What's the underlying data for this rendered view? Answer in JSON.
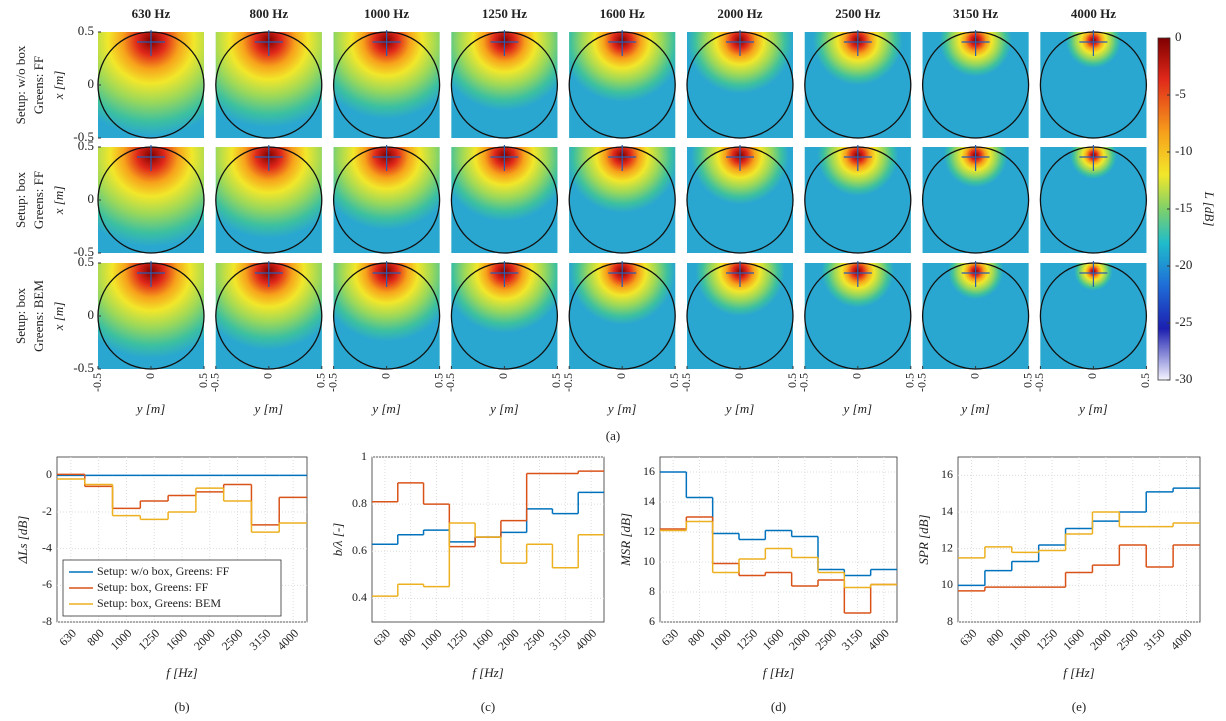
{
  "figure_a": {
    "columns": [
      "630 Hz",
      "800 Hz",
      "1000 Hz",
      "1250 Hz",
      "1600 Hz",
      "2000 Hz",
      "2500 Hz",
      "3150 Hz",
      "4000 Hz"
    ],
    "rows": [
      {
        "setup": "Setup: w/o box",
        "greens": "Greens: FF"
      },
      {
        "setup": "Setup: box",
        "greens": "Greens: FF"
      },
      {
        "setup": "Setup: box",
        "greens": "Greens: BEM"
      }
    ],
    "x_label": "x [m]",
    "y_label": "y [m]",
    "xlim": [
      -0.5,
      0.5
    ],
    "xticks": [
      -0.5,
      0,
      0.5
    ],
    "ylim": [
      -0.5,
      0.5
    ],
    "yticks": [
      0.5,
      0,
      -0.5
    ],
    "colorbar": {
      "label": "L [dB]",
      "lim": [
        -30,
        0
      ],
      "ticks": [
        0,
        -5,
        -10,
        -15,
        -20,
        -25,
        -30
      ]
    },
    "caption": "(a)"
  },
  "chart_data": [
    {
      "type": "step",
      "caption": "(b)",
      "x_label": "f [Hz]",
      "y_label": "ΔLs [dB]",
      "categories": [
        "630",
        "800",
        "1000",
        "1250",
        "1600",
        "2000",
        "2500",
        "3150",
        "4000"
      ],
      "ylim": [
        -8,
        1
      ],
      "yticks": [
        0,
        -2,
        -4,
        -6,
        -8
      ],
      "grid": true,
      "legend": "lower left",
      "series": [
        {
          "name": "Setup: w/o box, Greens: FF",
          "color": "#0072bd",
          "values": [
            0,
            0,
            0,
            0,
            0,
            0,
            0,
            0,
            0
          ]
        },
        {
          "name": "Setup: box, Greens: FF",
          "color": "#d95319",
          "values": [
            0.05,
            -0.6,
            -1.8,
            -1.4,
            -1.1,
            -0.9,
            -0.5,
            -2.7,
            -1.2
          ]
        },
        {
          "name": "Setup: box, Greens: BEM",
          "color": "#edb120",
          "values": [
            -0.2,
            -0.5,
            -2.2,
            -2.4,
            -2.0,
            -0.7,
            -1.4,
            -3.1,
            -2.6
          ]
        }
      ]
    },
    {
      "type": "step",
      "caption": "(c)",
      "x_label": "f [Hz]",
      "y_label": "b/λ [-]",
      "categories": [
        "630",
        "800",
        "1000",
        "1250",
        "1600",
        "2000",
        "2500",
        "3150",
        "4000"
      ],
      "ylim": [
        0.3,
        1
      ],
      "yticks": [
        0.4,
        0.6,
        0.8,
        1
      ],
      "grid": true,
      "series": [
        {
          "color": "#0072bd",
          "values": [
            0.63,
            0.67,
            0.69,
            0.64,
            0.66,
            0.68,
            0.78,
            0.76,
            0.85
          ]
        },
        {
          "color": "#d95319",
          "values": [
            0.81,
            0.89,
            0.8,
            0.62,
            0.66,
            0.73,
            0.93,
            0.93,
            0.94
          ]
        },
        {
          "color": "#edb120",
          "values": [
            0.41,
            0.46,
            0.45,
            0.72,
            0.66,
            0.55,
            0.63,
            0.53,
            0.67
          ]
        }
      ]
    },
    {
      "type": "step",
      "caption": "(d)",
      "x_label": "f [Hz]",
      "y_label": "MSR [dB]",
      "categories": [
        "630",
        "800",
        "1000",
        "1250",
        "1600",
        "2000",
        "2500",
        "3150",
        "4000"
      ],
      "ylim": [
        6,
        17
      ],
      "yticks": [
        6,
        8,
        10,
        12,
        14,
        16
      ],
      "grid": true,
      "series": [
        {
          "color": "#0072bd",
          "values": [
            16,
            14.3,
            11.9,
            11.5,
            12.1,
            11.7,
            9.5,
            9.1,
            9.5
          ]
        },
        {
          "color": "#d95319",
          "values": [
            12.2,
            13.0,
            9.9,
            9.1,
            9.3,
            8.4,
            8.8,
            6.6,
            8.5
          ]
        },
        {
          "color": "#edb120",
          "values": [
            12.1,
            12.7,
            9.3,
            10.2,
            10.9,
            10.3,
            9.3,
            8.3,
            8.5
          ]
        }
      ]
    },
    {
      "type": "step",
      "caption": "(e)",
      "x_label": "f [Hz]",
      "y_label": "SPR [dB]",
      "categories": [
        "630",
        "800",
        "1000",
        "1250",
        "1600",
        "2000",
        "2500",
        "3150",
        "4000"
      ],
      "ylim": [
        8,
        17
      ],
      "yticks": [
        8,
        10,
        12,
        14,
        16
      ],
      "grid": true,
      "series": [
        {
          "color": "#0072bd",
          "values": [
            10.0,
            10.8,
            11.3,
            12.2,
            13.1,
            13.5,
            14.0,
            15.1,
            15.3
          ]
        },
        {
          "color": "#d95319",
          "values": [
            9.7,
            9.9,
            9.9,
            9.9,
            10.7,
            11.1,
            12.2,
            11.0,
            12.2
          ]
        },
        {
          "color": "#edb120",
          "values": [
            11.5,
            12.1,
            11.8,
            11.9,
            12.8,
            14.0,
            13.2,
            13.2,
            13.4
          ]
        }
      ]
    }
  ]
}
